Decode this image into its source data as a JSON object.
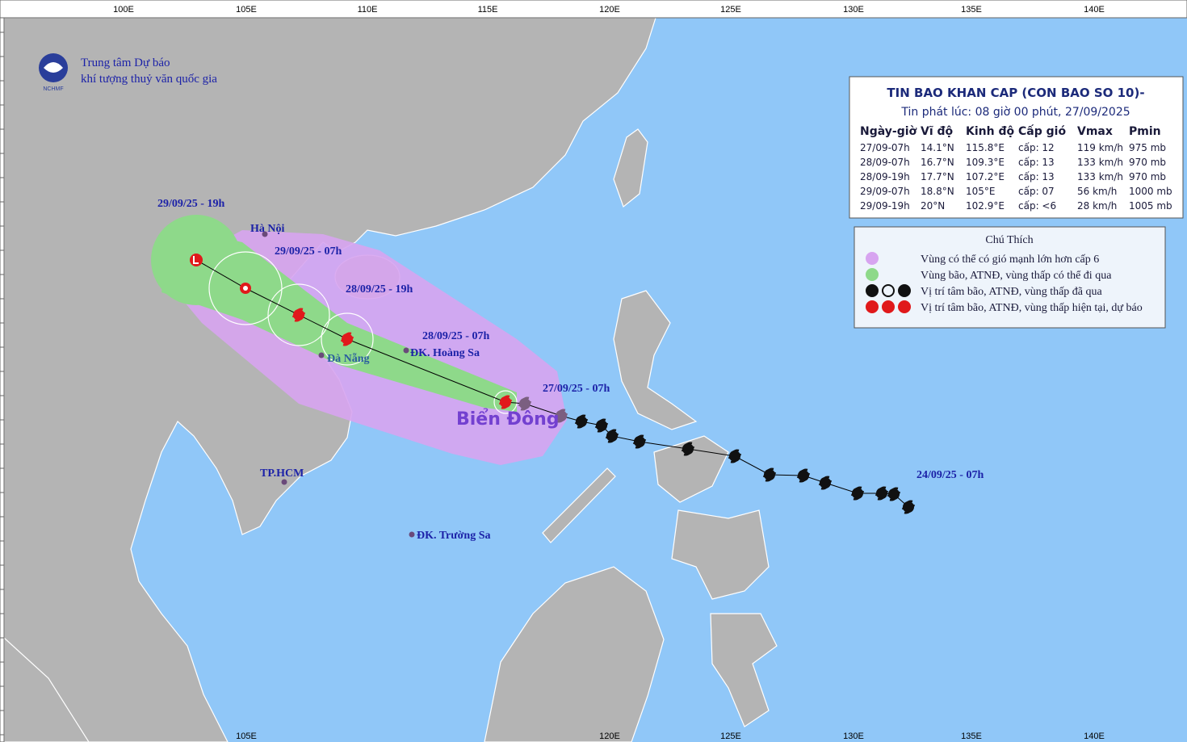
{
  "header": {
    "org_lines": [
      "Trung tâm Dự báo",
      "khí tượng thuỷ văn quốc gia"
    ],
    "logo_text": "NCHMF"
  },
  "axis": {
    "top_ticks": [
      "100E",
      "105E",
      "110E",
      "115E",
      "120E",
      "125E",
      "130E",
      "135E",
      "140E"
    ],
    "bottom_ticks": [
      "105E",
      "120E",
      "125E",
      "130E",
      "135E",
      "140E"
    ]
  },
  "table": {
    "title": "TIN BAO KHAN CAP (CON BAO SO 10)-",
    "subtitle": "Tin phát lúc: 08 giờ 00 phút, 27/09/2025",
    "columns": [
      "Ngày-giờ",
      "Vĩ độ",
      "Kinh độ",
      "Cấp gió",
      "Vmax",
      "Pmin"
    ],
    "rows": [
      [
        "27/09-07h",
        "14.1°N",
        "115.8°E",
        "cấp: 12",
        "119 km/h",
        "975 mb"
      ],
      [
        "28/09-07h",
        "16.7°N",
        "109.3°E",
        "cấp: 13",
        "133 km/h",
        "970 mb"
      ],
      [
        "28/09-19h",
        "17.7°N",
        "107.2°E",
        "cấp: 13",
        "133 km/h",
        "970 mb"
      ],
      [
        "29/09-07h",
        "18.8°N",
        "105°E",
        "cấp: 07",
        "56 km/h",
        "1000 mb"
      ],
      [
        "29/09-19h",
        "20°N",
        "102.9°E",
        "cấp: <6",
        "28 km/h",
        "1005 mb"
      ]
    ]
  },
  "legend": {
    "title": "Chú Thích",
    "items": [
      "Vùng có thể có gió mạnh lớn hơn cấp 6",
      "Vùng bão, ATNĐ, vùng thấp có thể đi qua",
      "Vị trí tâm bão, ATNĐ, vùng thấp đã qua",
      "Vị trí tâm bão, ATNĐ, vùng thấp hiện tại, dự báo"
    ]
  },
  "map_labels": {
    "track": [
      "29/09/25 - 19h",
      "29/09/25 - 07h",
      "28/09/25 - 19h",
      "28/09/25 - 07h",
      "27/09/25 - 07h",
      "24/09/25 - 07h"
    ],
    "places": [
      "Hà Nội",
      "Đà Nẵng",
      "ĐK. Hoàng Sa",
      "TP.HCM",
      "ĐK. Trường Sa"
    ],
    "sea": "Biển Đông"
  }
}
